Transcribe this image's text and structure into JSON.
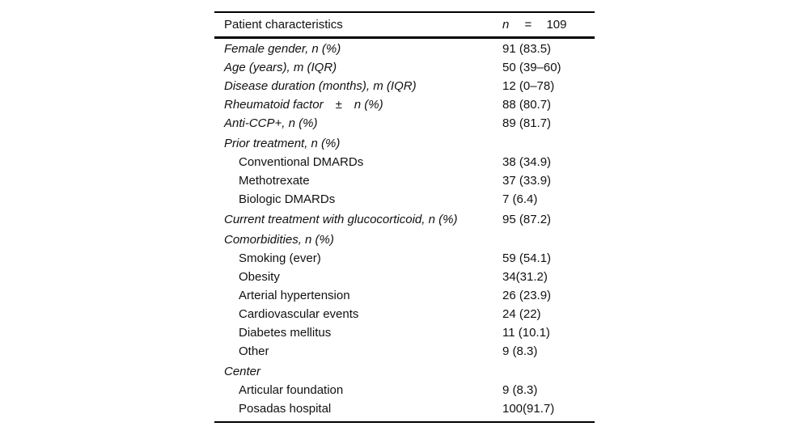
{
  "table": {
    "header": {
      "label": "Patient characteristics",
      "n_symbol": "n",
      "equals": "=",
      "n_value": "109"
    },
    "rows": [
      {
        "label": "Female gender, n (%)",
        "value": "91 (83.5)",
        "italic": true,
        "indent": false,
        "gap": false
      },
      {
        "label": "Age (years), m (IQR)",
        "value": "50 (39–60)",
        "italic": true,
        "indent": false,
        "gap": false
      },
      {
        "label": "Disease duration (months), m (IQR)",
        "value": "12 (0–78)",
        "italic": true,
        "indent": false,
        "gap": false
      },
      {
        "label": "Rheumatoid factor ± n (%)",
        "value": "88 (80.7)",
        "italic": true,
        "indent": false,
        "gap": false
      },
      {
        "label": "Anti-CCP+, n (%)",
        "value": "89 (81.7)",
        "italic": true,
        "indent": false,
        "gap": false
      },
      {
        "label": "Prior treatment, n (%)",
        "value": "",
        "italic": true,
        "indent": false,
        "gap": true
      },
      {
        "label": "Conventional DMARDs",
        "value": "38 (34.9)",
        "italic": false,
        "indent": true,
        "gap": false
      },
      {
        "label": "Methotrexate",
        "value": "37 (33.9)",
        "italic": false,
        "indent": true,
        "gap": false
      },
      {
        "label": "Biologic DMARDs",
        "value": "7 (6.4)",
        "italic": false,
        "indent": true,
        "gap": false
      },
      {
        "label": "Current treatment with glucocorticoid, n (%)",
        "value": "95 (87.2)",
        "italic": true,
        "indent": false,
        "gap": true
      },
      {
        "label": "Comorbidities, n (%)",
        "value": "",
        "italic": true,
        "indent": false,
        "gap": true
      },
      {
        "label": "Smoking (ever)",
        "value": "59 (54.1)",
        "italic": false,
        "indent": true,
        "gap": false
      },
      {
        "label": "Obesity",
        "value": "34(31.2)",
        "italic": false,
        "indent": true,
        "gap": false
      },
      {
        "label": "Arterial hypertension",
        "value": "26 (23.9)",
        "italic": false,
        "indent": true,
        "gap": false
      },
      {
        "label": "Cardiovascular events",
        "value": "24 (22)",
        "italic": false,
        "indent": true,
        "gap": false
      },
      {
        "label": "Diabetes mellitus",
        "value": "11 (10.1)",
        "italic": false,
        "indent": true,
        "gap": false
      },
      {
        "label": "Other",
        "value": "9 (8.3)",
        "italic": false,
        "indent": true,
        "gap": false
      },
      {
        "label": "Center",
        "value": "",
        "italic": true,
        "indent": false,
        "gap": true
      },
      {
        "label": "Articular foundation",
        "value": "9 (8.3)",
        "italic": false,
        "indent": true,
        "gap": false
      },
      {
        "label": "Posadas hospital",
        "value": "100(91.7)",
        "italic": false,
        "indent": true,
        "gap": false
      }
    ]
  }
}
